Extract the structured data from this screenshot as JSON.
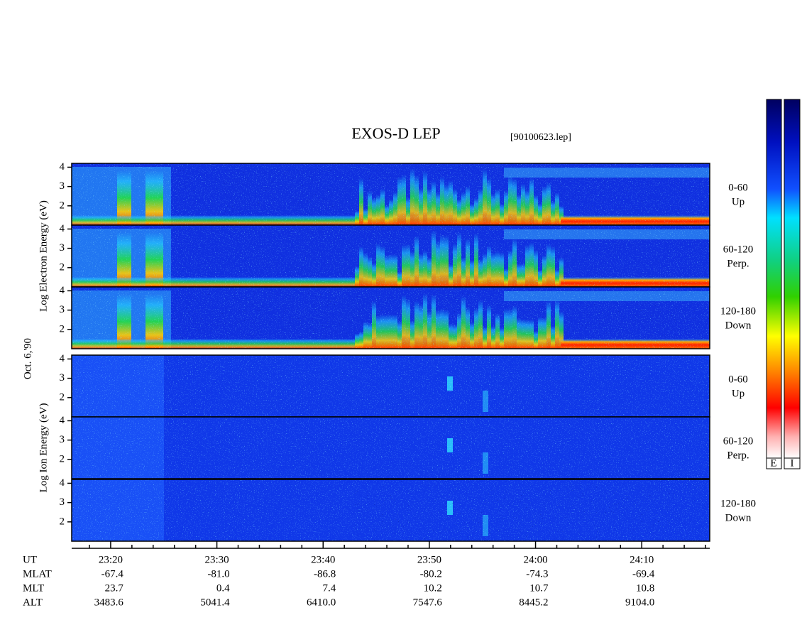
{
  "chart_data": {
    "type": "spectrogram",
    "title": "EXOS-D LEP",
    "file_label": "[90100623.lep]",
    "date_label": "Oct. 6,'90",
    "groups": [
      {
        "species": "electron",
        "label": "Log  Electron  Energy (eV)",
        "panels": [
          {
            "angle": "0-60",
            "direction": "Up"
          },
          {
            "angle": "60-120",
            "direction": "Perp."
          },
          {
            "angle": "120-180",
            "direction": "Down"
          }
        ]
      },
      {
        "species": "ion",
        "label": "Log  Ion  Energy (eV)",
        "panels": [
          {
            "angle": "0-60",
            "direction": "Up"
          },
          {
            "angle": "60-120",
            "direction": "Perp."
          },
          {
            "angle": "120-180",
            "direction": "Down"
          }
        ]
      }
    ],
    "ylim": [
      1,
      4.2
    ],
    "yticks": [
      2,
      3,
      4
    ],
    "xlim": [
      1396.33,
      1456.4
    ],
    "xticks": [
      {
        "value": 1400,
        "label": "23:20"
      },
      {
        "value": 1410,
        "label": "23:30"
      },
      {
        "value": 1420,
        "label": "23:40"
      },
      {
        "value": 1430,
        "label": "23:50"
      },
      {
        "value": 1440,
        "label": "24:00"
      },
      {
        "value": 1450,
        "label": "24:10"
      }
    ],
    "xminorticks": [
      1398,
      1402,
      1404,
      1406,
      1408,
      1412,
      1414,
      1416,
      1418,
      1422,
      1424,
      1426,
      1428,
      1432,
      1434,
      1436,
      1438,
      1442,
      1444,
      1446,
      1448,
      1452,
      1454,
      1456
    ],
    "x_axis_label": "UT",
    "rows": [
      {
        "name": "MLAT",
        "values": [
          "-67.4",
          "-81.0",
          "-86.8",
          "-80.2",
          "-74.3",
          "-69.4"
        ]
      },
      {
        "name": "MLT",
        "values": [
          "23.7",
          "0.4",
          "7.4",
          "10.2",
          "10.7",
          "10.8"
        ]
      },
      {
        "name": "ALT",
        "values": [
          "3483.6",
          "5041.4",
          "6410.0",
          "7547.6",
          "8445.2",
          "9104.0"
        ]
      }
    ],
    "colorbar_labels": [
      "E",
      "I"
    ]
  }
}
